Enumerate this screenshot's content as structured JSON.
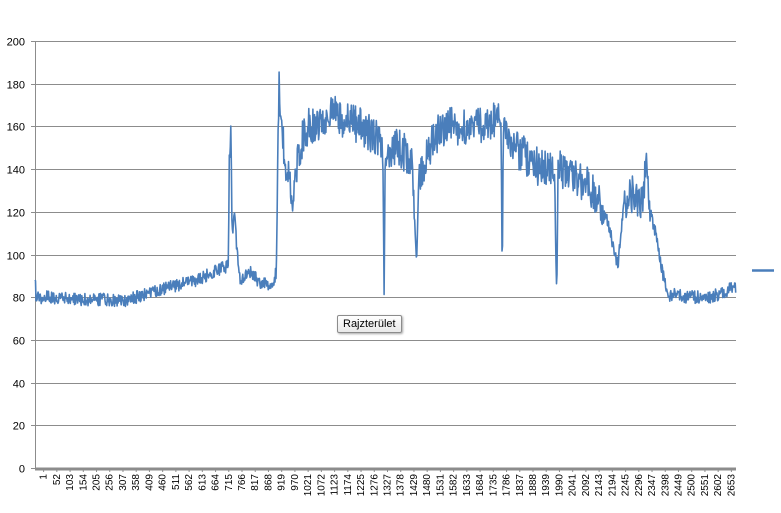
{
  "chart_data": {
    "type": "line",
    "title": "",
    "xlabel": "",
    "ylabel": "",
    "ylim": [
      0,
      200
    ],
    "y_ticks": [
      0,
      20,
      40,
      60,
      80,
      100,
      120,
      140,
      160,
      180,
      200
    ],
    "x_range": [
      1,
      2700
    ],
    "x_tick_labels": [
      "1",
      "52",
      "103",
      "154",
      "205",
      "256",
      "307",
      "358",
      "409",
      "460",
      "511",
      "562",
      "613",
      "664",
      "715",
      "766",
      "817",
      "868",
      "919",
      "970",
      "1021",
      "1072",
      "1123",
      "1174",
      "1225",
      "1276",
      "1327",
      "1378",
      "1429",
      "1480",
      "1531",
      "1582",
      "1633",
      "1684",
      "1735",
      "1786",
      "1837",
      "1888",
      "1939",
      "1990",
      "2041",
      "2092",
      "2143",
      "2194",
      "2245",
      "2296",
      "2347",
      "2398",
      "2449",
      "2500",
      "2551",
      "2602",
      "2653"
    ],
    "grid": "horizontal",
    "legend": "right",
    "series_color": "#4a7ebb",
    "series": [
      {
        "noise": 3,
        "points": [
          [
            1,
            91
          ],
          [
            5,
            80
          ],
          [
            60,
            80
          ],
          [
            150,
            79
          ],
          [
            250,
            79
          ],
          [
            330,
            78
          ],
          [
            420,
            81
          ],
          [
            500,
            84
          ],
          [
            560,
            86
          ],
          [
            620,
            88
          ],
          [
            680,
            91
          ],
          [
            730,
            94
          ],
          [
            745,
            95
          ],
          [
            750,
            150
          ],
          [
            755,
            155
          ],
          [
            760,
            110
          ],
          [
            770,
            118
          ],
          [
            780,
            100
          ],
          [
            790,
            88
          ],
          [
            830,
            92
          ],
          [
            870,
            86
          ],
          [
            915,
            86
          ],
          [
            930,
            92
          ],
          [
            940,
            178
          ],
          [
            950,
            165
          ],
          [
            960,
            150
          ],
          [
            970,
            130
          ],
          [
            980,
            140
          ],
          [
            990,
            120
          ],
          [
            1000,
            135
          ],
          [
            1020,
            150
          ],
          [
            1050,
            160
          ],
          [
            1100,
            163
          ],
          [
            1150,
            167
          ],
          [
            1200,
            162
          ],
          [
            1250,
            160
          ],
          [
            1300,
            156
          ],
          [
            1340,
            152
          ],
          [
            1345,
            83
          ],
          [
            1350,
            150
          ],
          [
            1400,
            150
          ],
          [
            1450,
            145
          ],
          [
            1470,
            97
          ],
          [
            1480,
            135
          ],
          [
            1520,
            150
          ],
          [
            1560,
            158
          ],
          [
            1600,
            160
          ],
          [
            1650,
            160
          ],
          [
            1700,
            160
          ],
          [
            1750,
            162
          ],
          [
            1795,
            165
          ],
          [
            1800,
            88
          ],
          [
            1805,
            160
          ],
          [
            1850,
            150
          ],
          [
            1900,
            145
          ],
          [
            1950,
            140
          ],
          [
            2000,
            140
          ],
          [
            2010,
            80
          ],
          [
            2015,
            140
          ],
          [
            2050,
            138
          ],
          [
            2100,
            135
          ],
          [
            2150,
            130
          ],
          [
            2200,
            118
          ],
          [
            2245,
            95
          ],
          [
            2270,
            125
          ],
          [
            2300,
            128
          ],
          [
            2340,
            125
          ],
          [
            2355,
            145
          ],
          [
            2370,
            120
          ],
          [
            2390,
            110
          ],
          [
            2420,
            90
          ],
          [
            2440,
            80
          ],
          [
            2460,
            82
          ],
          [
            2500,
            80
          ],
          [
            2550,
            80
          ],
          [
            2600,
            80
          ],
          [
            2650,
            82
          ],
          [
            2680,
            84
          ],
          [
            2700,
            85
          ]
        ]
      }
    ]
  },
  "tooltip": {
    "text": "Rajzterület"
  }
}
